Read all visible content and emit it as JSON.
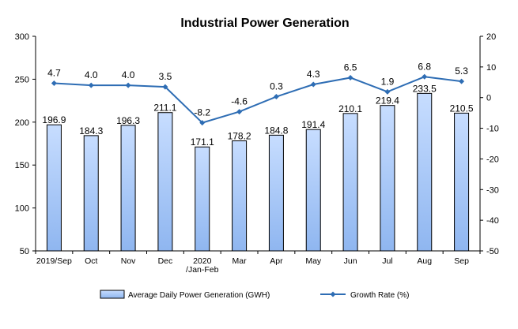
{
  "chart_data": {
    "type": "bar",
    "title": "Industrial Power Generation",
    "categories": [
      [
        "2019/Sep"
      ],
      [
        "Oct"
      ],
      [
        "Nov"
      ],
      [
        "Dec"
      ],
      [
        "2020",
        "/Jan-Feb"
      ],
      [
        "Mar"
      ],
      [
        "Apr"
      ],
      [
        "May"
      ],
      [
        "Jun"
      ],
      [
        "Jul"
      ],
      [
        "Aug"
      ],
      [
        "Sep"
      ]
    ],
    "series": [
      {
        "name": "Average Daily Power Generation (GWH)",
        "type": "bar",
        "axis": "left",
        "values": [
          196.9,
          184.3,
          196.3,
          211.1,
          171.1,
          178.2,
          184.8,
          191.4,
          210.1,
          219.4,
          233.5,
          210.5
        ],
        "labels": [
          "196.9",
          "184.3",
          "196.3",
          "211.1",
          "171.1",
          "178.2",
          "184.8",
          "191.4",
          "210.1",
          "219.4",
          "233.5",
          "210.5"
        ]
      },
      {
        "name": "Growth Rate (%)",
        "type": "line",
        "axis": "right",
        "values": [
          4.7,
          4.0,
          4.0,
          3.5,
          -8.2,
          -4.6,
          0.3,
          4.3,
          6.5,
          1.9,
          6.8,
          5.3
        ],
        "labels": [
          "4.7",
          "4.0",
          "4.0",
          "3.5",
          "-8.2",
          "-4.6",
          "0.3",
          "4.3",
          "6.5",
          "1.9",
          "6.8",
          "5.3"
        ]
      }
    ],
    "left_axis": {
      "min": 50,
      "max": 300,
      "ticks": [
        50,
        100,
        150,
        200,
        250,
        300
      ]
    },
    "right_axis": {
      "min": -50,
      "max": 20,
      "ticks": [
        -50,
        -40,
        -30,
        -20,
        -10,
        0,
        10,
        20
      ]
    },
    "grid": false,
    "legend_position": "bottom",
    "colors": {
      "bar_fill_top": "#c7ddff",
      "bar_fill_bottom": "#8fb6f0",
      "bar_stroke": "#000000",
      "line": "#2e6db4",
      "axis": "#000000"
    }
  }
}
